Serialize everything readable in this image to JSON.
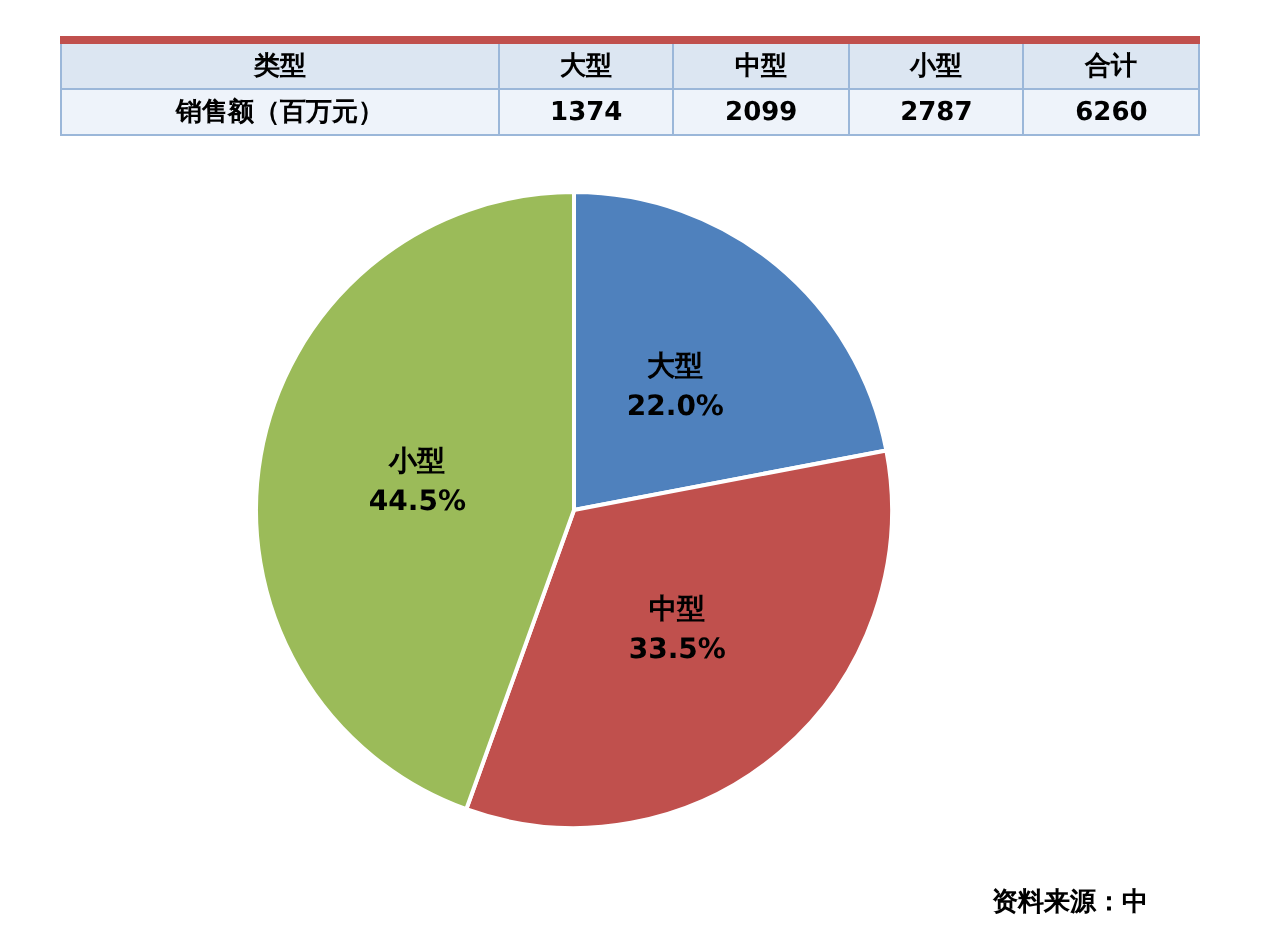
{
  "chart_data": {
    "type": "pie",
    "categories": [
      "大型",
      "中型",
      "小型"
    ],
    "values": [
      22.0,
      33.5,
      44.5
    ],
    "colors": [
      "#4f81bd",
      "#c0504d",
      "#9bbb59"
    ],
    "value_labels": [
      "22.0%",
      "33.5%",
      "44.5%"
    ],
    "annotations": [
      "类型",
      "销售额（百万元）",
      "1374",
      "2099",
      "2787",
      "合计",
      "6260",
      "资料来源：中"
    ]
  }
}
